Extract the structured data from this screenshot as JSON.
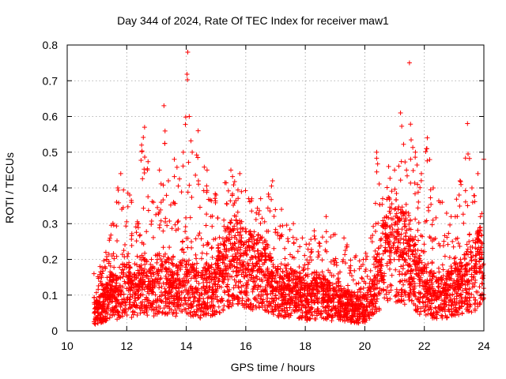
{
  "chart_data": {
    "type": "scatter",
    "title": "Day 344 of 2024, Rate Of TEC Index for receiver maw1",
    "xlabel": "GPS time / hours",
    "ylabel": "ROTI / TECUs",
    "xlim": [
      10,
      24
    ],
    "ylim": [
      0,
      0.8
    ],
    "xticks": [
      "10",
      "12",
      "14",
      "16",
      "18",
      "20",
      "22",
      "24"
    ],
    "yticks": [
      "0",
      "0.1",
      "0.2",
      "0.3",
      "0.4",
      "0.5",
      "0.6",
      "0.7",
      "0.8"
    ],
    "grid": true,
    "marker": "+",
    "marker_color": "#ff0000",
    "series": [
      {
        "x": [
          10.9,
          11.1,
          11.3,
          11.5,
          11.7,
          11.9,
          12.1,
          12.3,
          12.5,
          12.7,
          12.9,
          13.1,
          13.3,
          13.5,
          13.7,
          13.9,
          14.1,
          14.3,
          14.5,
          14.7,
          14.9,
          15.1,
          15.3,
          15.5,
          15.7,
          15.9,
          16.1,
          16.3,
          16.5,
          16.7,
          16.9,
          17.1,
          17.3,
          17.5,
          17.7,
          17.9,
          18.1,
          18.3,
          18.5,
          18.7,
          18.9,
          19.1,
          19.3,
          19.5,
          19.7,
          19.9,
          20.1,
          20.3,
          20.5,
          20.7,
          20.9,
          21.1,
          21.3,
          21.5,
          21.7,
          21.9,
          22.1,
          22.3,
          22.5,
          22.7,
          22.9,
          23.1,
          23.3,
          23.5,
          23.7,
          23.9
        ],
        "y": [
          0.05,
          0.06,
          0.08,
          0.1,
          0.09,
          0.12,
          0.11,
          0.1,
          0.13,
          0.12,
          0.11,
          0.14,
          0.13,
          0.12,
          0.11,
          0.13,
          0.12,
          0.11,
          0.1,
          0.12,
          0.11,
          0.14,
          0.17,
          0.19,
          0.2,
          0.18,
          0.17,
          0.16,
          0.17,
          0.15,
          0.12,
          0.11,
          0.1,
          0.11,
          0.1,
          0.09,
          0.08,
          0.09,
          0.1,
          0.09,
          0.08,
          0.08,
          0.07,
          0.07,
          0.06,
          0.06,
          0.07,
          0.09,
          0.16,
          0.22,
          0.25,
          0.22,
          0.2,
          0.18,
          0.15,
          0.12,
          0.11,
          0.1,
          0.09,
          0.1,
          0.11,
          0.12,
          0.13,
          0.14,
          0.16,
          0.18
        ]
      }
    ],
    "upper_envelope": {
      "x": [
        10.9,
        11.3,
        11.7,
        11.8,
        12.1,
        12.4,
        12.5,
        12.6,
        12.9,
        13.1,
        13.25,
        13.4,
        13.6,
        13.9,
        14.05,
        14.1,
        14.2,
        14.4,
        14.7,
        15.0,
        15.5,
        15.8,
        16.1,
        16.5,
        16.9,
        17.2,
        17.6,
        17.9,
        18.3,
        18.7,
        19.0,
        19.3,
        19.7,
        19.95,
        20.2,
        20.4,
        20.6,
        20.8,
        21.0,
        21.2,
        21.4,
        21.5,
        21.7,
        21.9,
        22.1,
        22.3,
        22.6,
        22.9,
        23.2,
        23.45,
        23.6,
        23.8,
        24.0
      ],
      "y": [
        0.16,
        0.22,
        0.4,
        0.44,
        0.38,
        0.3,
        0.52,
        0.57,
        0.36,
        0.45,
        0.63,
        0.42,
        0.48,
        0.5,
        0.78,
        0.6,
        0.5,
        0.56,
        0.45,
        0.38,
        0.45,
        0.44,
        0.37,
        0.37,
        0.42,
        0.34,
        0.3,
        0.26,
        0.28,
        0.32,
        0.27,
        0.26,
        0.21,
        0.2,
        0.26,
        0.5,
        0.37,
        0.46,
        0.45,
        0.61,
        0.45,
        0.75,
        0.5,
        0.44,
        0.54,
        0.4,
        0.36,
        0.32,
        0.42,
        0.58,
        0.4,
        0.44,
        0.48
      ]
    }
  }
}
